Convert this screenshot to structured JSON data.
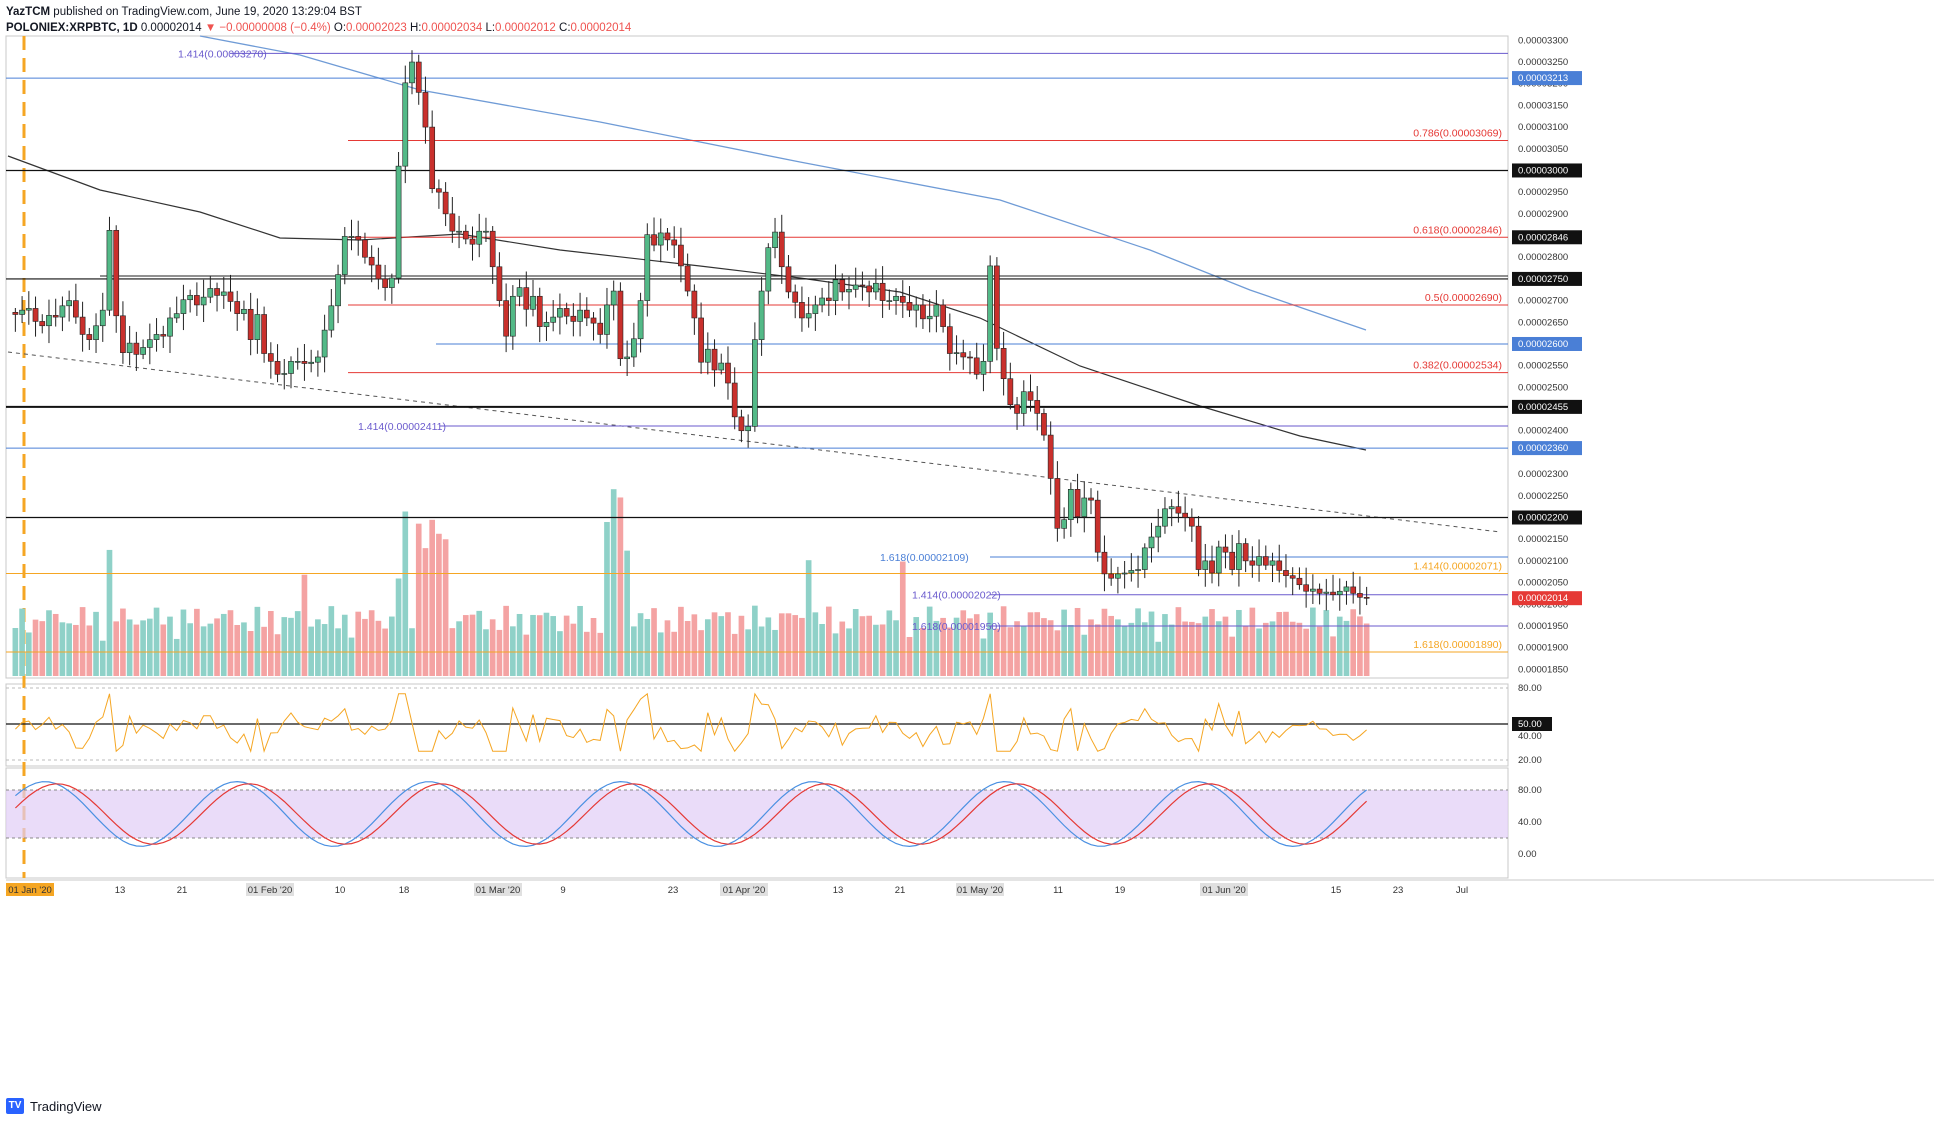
{
  "header": {
    "author": "YazTCM",
    "published": "published on TradingView.com, June 19, 2020 13:29:04 BST",
    "symbol": "POLONIEX:XRPBTC, 1D",
    "last": "0.00002014",
    "change": "−0.00000008 (−0.4%)",
    "o_label": "O:",
    "o_value": "0.00002023",
    "h_label": "H:",
    "h_value": "0.00002034",
    "l_label": "L:",
    "l_value": "0.00002012",
    "c_label": "C:",
    "c_value": "0.00002014"
  },
  "footer": {
    "brand": "TradingView"
  },
  "colors": {
    "bull": "#53b987",
    "bear": "#c9302c",
    "vol_bull": "#8fd1c8",
    "vol_bear": "#f4a3a3",
    "fib_red": "#e53935",
    "blue_line": "#4a7fd6",
    "purple": "#6a5acd",
    "orange": "#f5a623",
    "ma200": "#6f9bd6",
    "ma100": "#333333",
    "rsi": "#f5a623",
    "stoch_k": "#4a90e2",
    "stoch_d": "#e53935",
    "stoch_bg": "#e1cdf7"
  },
  "chart_data": {
    "type": "candlestick",
    "price_axis_ticks": [
      "0.00003300",
      "0.00003250",
      "0.00003200",
      "0.00003150",
      "0.00003100",
      "0.00003050",
      "0.00003000",
      "0.00002950",
      "0.00002900",
      "0.00002850",
      "0.00002800",
      "0.00002750",
      "0.00002700",
      "0.00002650",
      "0.00002600",
      "0.00002550",
      "0.00002500",
      "0.00002455",
      "0.00002400",
      "0.00002360",
      "0.00002300",
      "0.00002250",
      "0.00002200",
      "0.00002150",
      "0.00002100",
      "0.00002050",
      "0.00002000",
      "0.00001950",
      "0.00001900",
      "0.00001850"
    ],
    "price_range": [
      1.83e-05,
      3.31e-05
    ],
    "x_ticks": [
      "01 Jan '20",
      "13",
      "21",
      "01 Feb '20",
      "10",
      "18",
      "01 Mar '20",
      "9",
      "23",
      "01 Apr '20",
      "13",
      "21",
      "01 May '20",
      "11",
      "19",
      "01 Jun '20",
      "15",
      "23",
      "Jul"
    ],
    "highlighted_x_ticks": [
      "01 Jan '20",
      "01 Feb '20",
      "01 Mar '20",
      "01 Apr '20",
      "01 May '20",
      "01 Jun '20"
    ],
    "levels": [
      {
        "label": "1.414(0.00003270)",
        "price": 3.27e-05,
        "color": "purple",
        "label_side": "left"
      },
      {
        "label": "0.00003213",
        "price": 3.213e-05,
        "color": "blue",
        "badge": true
      },
      {
        "label": "0.786(0.00003069)",
        "price": 3.069e-05,
        "color": "red",
        "label_side": "right"
      },
      {
        "label": "0.00003000",
        "price": 3e-05,
        "color": "black",
        "badge": true
      },
      {
        "label": "0.618(0.00002846)",
        "price": 2.846e-05,
        "color": "red",
        "label_side": "right",
        "badge": true
      },
      {
        "label": "0.00002750",
        "price": 2.75e-05,
        "color": "black",
        "badge": true
      },
      {
        "label": "0.5(0.00002690)",
        "price": 2.69e-05,
        "color": "red",
        "label_side": "right"
      },
      {
        "label": "0.00002600",
        "price": 2.6e-05,
        "color": "blue",
        "badge": true
      },
      {
        "label": "0.382(0.00002534)",
        "price": 2.534e-05,
        "color": "red",
        "label_side": "right"
      },
      {
        "label": "0.00002455",
        "price": 2.455e-05,
        "color": "black",
        "badge": true
      },
      {
        "label": "1.414(0.00002411)",
        "price": 2.411e-05,
        "color": "purple",
        "label_side": "left"
      },
      {
        "label": "0.00002360",
        "price": 2.36e-05,
        "color": "blue",
        "badge": true
      },
      {
        "label": "0.00002200",
        "price": 2.2e-05,
        "color": "black",
        "badge": true
      },
      {
        "label": "1.618(0.00002109)",
        "price": 2.109e-05,
        "color": "blue",
        "label_side": "left"
      },
      {
        "label": "1.414(0.00002071)",
        "price": 2.071e-05,
        "color": "orange",
        "label_side": "right"
      },
      {
        "label": "1.414(0.00002022)",
        "price": 2.022e-05,
        "color": "purple",
        "label_side": "left"
      },
      {
        "label": "1.618(0.00001950)",
        "price": 1.95e-05,
        "color": "purple",
        "label_side": "left"
      },
      {
        "label": "1.618(0.00001890)",
        "price": 1.89e-05,
        "color": "orange",
        "label_side": "right"
      }
    ],
    "last_price_badge": "0.00002014",
    "closes": [
      2668,
      2678,
      2682,
      2652,
      2642,
      2666,
      2662,
      2688,
      2700,
      2662,
      2622,
      2610,
      2642,
      2678,
      2862,
      2665,
      2580,
      2602,
      2576,
      2592,
      2610,
      2622,
      2618,
      2660,
      2670,
      2702,
      2712,
      2690,
      2708,
      2728,
      2712,
      2720,
      2698,
      2670,
      2680,
      2610,
      2668,
      2578,
      2560,
      2530,
      2532,
      2560,
      2560,
      2555,
      2558,
      2570,
      2632,
      2688,
      2760,
      2848,
      2848,
      2840,
      2800,
      2782,
      2750,
      2730,
      2752,
      3010,
      3202,
      3250,
      3180,
      3100,
      2958,
      2950,
      2900,
      2860,
      2860,
      2842,
      2830,
      2860,
      2860,
      2778,
      2700,
      2618,
      2710,
      2730,
      2680,
      2710,
      2640,
      2650,
      2662,
      2682,
      2664,
      2652,
      2678,
      2660,
      2648,
      2622,
      2690,
      2722,
      2566,
      2570,
      2612,
      2700,
      2852,
      2828,
      2856,
      2840,
      2828,
      2780,
      2722,
      2660,
      2558,
      2588,
      2540,
      2556,
      2510,
      2432,
      2400,
      2410,
      2610,
      2722,
      2822,
      2858,
      2778,
      2720,
      2696,
      2660,
      2670,
      2690,
      2706,
      2700,
      2748,
      2720,
      2726,
      2736,
      2734,
      2720,
      2740,
      2700,
      2700,
      2710,
      2696,
      2678,
      2690,
      2658,
      2664,
      2690,
      2640,
      2578,
      2580,
      2570,
      2568,
      2530,
      2560,
      2780,
      2590,
      2520,
      2460,
      2440,
      2490,
      2470,
      2440,
      2390,
      2290,
      2175,
      2195,
      2265,
      2202,
      2245,
      2240,
      2120,
      2070,
      2060,
      2070,
      2072,
      2078,
      2080,
      2130,
      2155,
      2180,
      2220,
      2225,
      2210,
      2200,
      2180,
      2080,
      2100,
      2072,
      2132,
      2120,
      2080,
      2140,
      2100,
      2090,
      2110,
      2090,
      2100,
      2078,
      2066,
      2060,
      2045,
      2030,
      2035,
      2025,
      2028,
      2022,
      2030,
      2040,
      2025,
      2016,
      2014
    ],
    "volume_scale_note": "volumes in panel share",
    "rsi_panel": {
      "ticks": [
        "80.00",
        "50.00",
        "40.00",
        "20.00"
      ],
      "label": "50.00"
    },
    "stoch_panel": {
      "ticks": [
        "80.00",
        "40.00",
        "0.00"
      ]
    },
    "grid": false,
    "legend": "none"
  }
}
